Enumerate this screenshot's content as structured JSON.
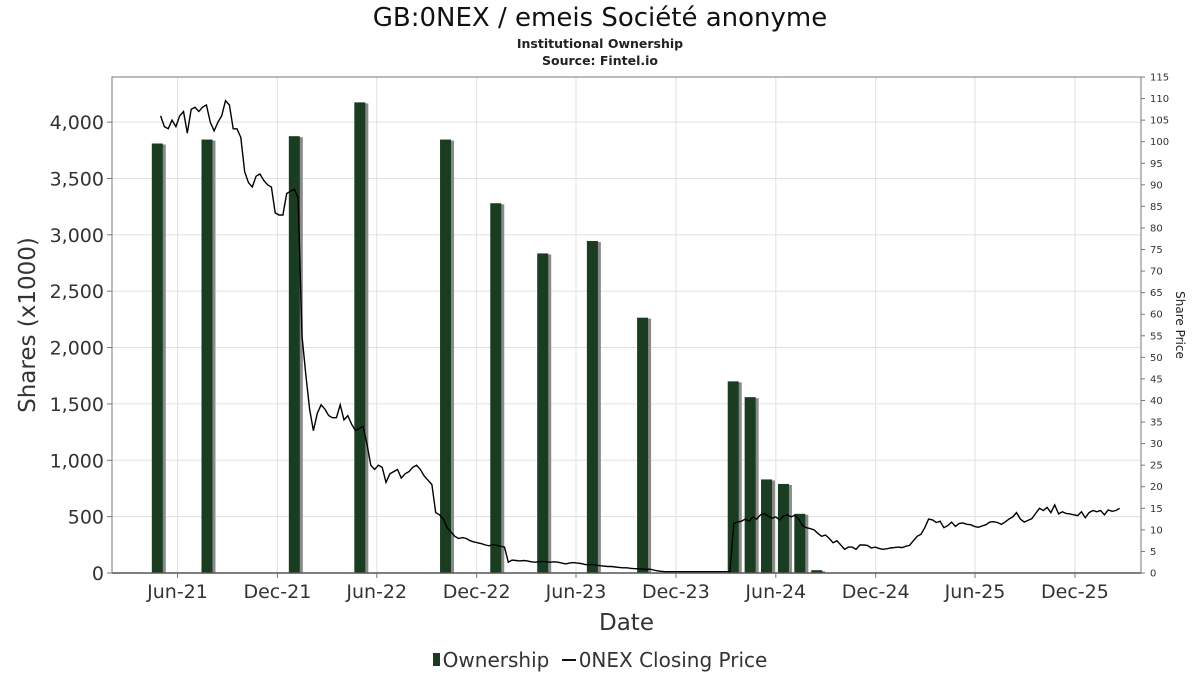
{
  "chart_data": {
    "type": "bar",
    "title": "GB:0NEX / emeis Société anonyme",
    "subtitle": "Institutional Ownership",
    "source": "Source: Fintel.io",
    "xlabel": "Date",
    "ylabel": "Shares (x1000)",
    "y2label": "Share Price",
    "x_tick_labels": [
      "Jun-21",
      "Dec-21",
      "Jun-22",
      "Dec-22",
      "Jun-23",
      "Dec-23",
      "Jun-24",
      "Dec-24",
      "Jun-25",
      "Dec-25"
    ],
    "x_tick_dates": [
      "2021-06-01",
      "2021-12-01",
      "2022-06-01",
      "2022-12-01",
      "2023-06-01",
      "2023-12-01",
      "2024-06-01",
      "2024-12-01",
      "2025-06-01",
      "2025-12-01"
    ],
    "xlim": [
      "2021-02-01",
      "2026-04-01"
    ],
    "ylim": [
      0,
      4400
    ],
    "y_ticks": [
      0,
      500,
      1000,
      1500,
      2000,
      2500,
      3000,
      3500,
      4000
    ],
    "y_tick_labels": [
      "0",
      "500",
      "1,000",
      "1,500",
      "2,000",
      "2,500",
      "3,000",
      "3,500",
      "4,000"
    ],
    "y2lim": [
      0,
      115
    ],
    "y2_ticks": [
      0,
      5,
      10,
      15,
      20,
      25,
      30,
      35,
      40,
      45,
      50,
      55,
      60,
      65,
      70,
      75,
      80,
      85,
      90,
      95,
      100,
      105,
      110,
      115
    ],
    "grid": true,
    "legend_position": "bottom-center",
    "colors": {
      "bar": "#1a3d22",
      "bar_shadow": "#8a8a8a",
      "line": "#000000",
      "grid": "#e0e0e0"
    },
    "series": [
      {
        "name": "Ownership",
        "type": "bar",
        "points": [
          [
            "2021-04-25",
            3810
          ],
          [
            "2021-07-25",
            3845
          ],
          [
            "2022-01-01",
            3875
          ],
          [
            "2022-05-01",
            4175
          ],
          [
            "2022-10-05",
            3845
          ],
          [
            "2023-01-05",
            3280
          ],
          [
            "2023-04-01",
            2835
          ],
          [
            "2023-07-01",
            2945
          ],
          [
            "2023-10-01",
            2265
          ],
          [
            "2024-03-15",
            1700
          ],
          [
            "2024-04-15",
            1560
          ],
          [
            "2024-05-15",
            830
          ],
          [
            "2024-06-15",
            790
          ],
          [
            "2024-07-15",
            525
          ],
          [
            "2024-08-15",
            25
          ]
        ]
      },
      {
        "name": "0NEX Closing Price",
        "type": "line",
        "axis": "right",
        "points": [
          [
            "2021-05-01",
            106
          ],
          [
            "2021-05-08",
            103.5
          ],
          [
            "2021-05-15",
            103
          ],
          [
            "2021-05-22",
            105
          ],
          [
            "2021-05-29",
            103.5
          ],
          [
            "2021-06-05",
            106
          ],
          [
            "2021-06-12",
            107
          ],
          [
            "2021-06-19",
            102
          ],
          [
            "2021-06-26",
            107.5
          ],
          [
            "2021-07-03",
            108
          ],
          [
            "2021-07-10",
            107
          ],
          [
            "2021-07-17",
            108
          ],
          [
            "2021-07-24",
            108.5
          ],
          [
            "2021-07-31",
            104.5
          ],
          [
            "2021-08-07",
            102.5
          ],
          [
            "2021-08-14",
            104.5
          ],
          [
            "2021-08-21",
            106
          ],
          [
            "2021-08-28",
            109.5
          ],
          [
            "2021-09-04",
            108.5
          ],
          [
            "2021-09-11",
            103
          ],
          [
            "2021-09-18",
            103
          ],
          [
            "2021-09-25",
            101
          ],
          [
            "2021-10-02",
            93
          ],
          [
            "2021-10-09",
            90.5
          ],
          [
            "2021-10-16",
            89.5
          ],
          [
            "2021-10-23",
            92
          ],
          [
            "2021-10-30",
            92.5
          ],
          [
            "2021-11-06",
            91
          ],
          [
            "2021-11-13",
            90
          ],
          [
            "2021-11-20",
            89.5
          ],
          [
            "2021-11-27",
            83.5
          ],
          [
            "2021-12-04",
            83
          ],
          [
            "2021-12-11",
            83
          ],
          [
            "2021-12-18",
            88
          ],
          [
            "2021-12-25",
            88.5
          ],
          [
            "2022-01-01",
            89
          ],
          [
            "2022-01-08",
            87
          ],
          [
            "2022-01-15",
            55
          ],
          [
            "2022-01-22",
            46
          ],
          [
            "2022-01-29",
            38
          ],
          [
            "2022-02-05",
            33
          ],
          [
            "2022-02-12",
            37
          ],
          [
            "2022-02-19",
            39
          ],
          [
            "2022-02-26",
            38
          ],
          [
            "2022-03-05",
            36.5
          ],
          [
            "2022-03-12",
            36
          ],
          [
            "2022-03-19",
            36
          ],
          [
            "2022-03-26",
            39
          ],
          [
            "2022-04-02",
            35.5
          ],
          [
            "2022-04-09",
            36.5
          ],
          [
            "2022-04-16",
            34.5
          ],
          [
            "2022-04-23",
            33
          ],
          [
            "2022-04-30",
            33.5
          ],
          [
            "2022-05-07",
            34
          ],
          [
            "2022-05-14",
            30
          ],
          [
            "2022-05-21",
            25
          ],
          [
            "2022-05-28",
            24
          ],
          [
            "2022-06-04",
            25
          ],
          [
            "2022-06-11",
            24.5
          ],
          [
            "2022-06-18",
            21
          ],
          [
            "2022-06-25",
            23
          ],
          [
            "2022-07-02",
            23.5
          ],
          [
            "2022-07-09",
            24
          ],
          [
            "2022-07-16",
            22
          ],
          [
            "2022-07-23",
            23
          ],
          [
            "2022-07-30",
            23.5
          ],
          [
            "2022-08-06",
            24.5
          ],
          [
            "2022-08-13",
            25
          ],
          [
            "2022-08-20",
            24
          ],
          [
            "2022-08-27",
            22.5
          ],
          [
            "2022-09-03",
            21.5
          ],
          [
            "2022-09-10",
            20.5
          ],
          [
            "2022-09-17",
            14
          ],
          [
            "2022-09-24",
            13.5
          ],
          [
            "2022-10-01",
            12.5
          ],
          [
            "2022-10-08",
            10.5
          ],
          [
            "2022-10-15",
            9.5
          ],
          [
            "2022-10-22",
            8.5
          ],
          [
            "2022-10-29",
            8
          ],
          [
            "2022-11-05",
            8.2
          ],
          [
            "2022-11-12",
            8
          ],
          [
            "2022-11-19",
            7.5
          ],
          [
            "2022-11-26",
            7.2
          ],
          [
            "2022-12-03",
            7
          ],
          [
            "2022-12-10",
            6.8
          ],
          [
            "2022-12-17",
            6.5
          ],
          [
            "2022-12-24",
            6.3
          ],
          [
            "2022-12-31",
            6.6
          ],
          [
            "2023-01-07",
            6.4
          ],
          [
            "2023-01-14",
            6.2
          ],
          [
            "2023-01-21",
            6
          ],
          [
            "2023-01-28",
            2.5
          ],
          [
            "2023-02-04",
            3
          ],
          [
            "2023-02-11",
            2.9
          ],
          [
            "2023-02-18",
            2.8
          ],
          [
            "2023-02-25",
            2.9
          ],
          [
            "2023-03-04",
            2.8
          ],
          [
            "2023-03-11",
            2.6
          ],
          [
            "2023-03-18",
            2.5
          ],
          [
            "2023-03-25",
            2.6
          ],
          [
            "2023-04-01",
            2.7
          ],
          [
            "2023-04-08",
            2.6
          ],
          [
            "2023-04-15",
            2.5
          ],
          [
            "2023-04-22",
            2.6
          ],
          [
            "2023-04-29",
            2.5
          ],
          [
            "2023-05-06",
            2.3
          ],
          [
            "2023-05-13",
            2.1
          ],
          [
            "2023-05-20",
            2.3
          ],
          [
            "2023-05-27",
            2.4
          ],
          [
            "2023-06-03",
            2.3
          ],
          [
            "2023-06-10",
            2.2
          ],
          [
            "2023-06-17",
            2
          ],
          [
            "2023-06-24",
            1.9
          ],
          [
            "2023-07-01",
            2
          ],
          [
            "2023-07-08",
            1.8
          ],
          [
            "2023-07-15",
            1.7
          ],
          [
            "2023-07-22",
            1.6
          ],
          [
            "2023-07-29",
            1.5
          ],
          [
            "2023-08-05",
            1.5
          ],
          [
            "2023-08-12",
            1.4
          ],
          [
            "2023-08-19",
            1.3
          ],
          [
            "2023-08-26",
            1.2
          ],
          [
            "2023-09-02",
            1.2
          ],
          [
            "2023-09-09",
            1.1
          ],
          [
            "2023-09-16",
            1
          ],
          [
            "2023-09-23",
            1
          ],
          [
            "2023-09-30",
            0.9
          ],
          [
            "2023-10-07",
            0.8
          ],
          [
            "2023-10-14",
            0.9
          ],
          [
            "2023-10-21",
            0.7
          ],
          [
            "2023-10-28",
            0.5
          ],
          [
            "2023-11-04",
            0.4
          ],
          [
            "2023-11-11",
            0.3
          ],
          [
            "2023-11-18",
            0.3
          ],
          [
            "2023-11-25",
            0.3
          ],
          [
            "2023-12-02",
            0.3
          ],
          [
            "2023-12-09",
            0.3
          ],
          [
            "2023-12-16",
            0.3
          ],
          [
            "2023-12-23",
            0.3
          ],
          [
            "2023-12-30",
            0.3
          ],
          [
            "2024-01-06",
            0.3
          ],
          [
            "2024-01-13",
            0.3
          ],
          [
            "2024-01-20",
            0.3
          ],
          [
            "2024-01-27",
            0.3
          ],
          [
            "2024-02-03",
            0.3
          ],
          [
            "2024-02-10",
            0.3
          ],
          [
            "2024-02-17",
            0.3
          ],
          [
            "2024-02-24",
            0.3
          ],
          [
            "2024-03-02",
            0.3
          ],
          [
            "2024-03-09",
            0.3
          ],
          [
            "2024-03-16",
            11.5
          ],
          [
            "2024-03-23",
            11.8
          ],
          [
            "2024-03-30",
            12
          ],
          [
            "2024-04-06",
            12.5
          ],
          [
            "2024-04-13",
            12
          ],
          [
            "2024-04-20",
            13
          ],
          [
            "2024-04-27",
            12.5
          ],
          [
            "2024-05-04",
            13.5
          ],
          [
            "2024-05-11",
            13.8
          ],
          [
            "2024-05-18",
            13.2
          ],
          [
            "2024-05-25",
            12.7
          ],
          [
            "2024-06-01",
            13
          ],
          [
            "2024-06-08",
            12.3
          ],
          [
            "2024-06-15",
            13.2
          ],
          [
            "2024-06-22",
            13.5
          ],
          [
            "2024-06-29",
            13
          ],
          [
            "2024-07-06",
            13.4
          ],
          [
            "2024-07-13",
            12.5
          ],
          [
            "2024-07-20",
            11
          ],
          [
            "2024-07-27",
            10.5
          ],
          [
            "2024-08-03",
            10.3
          ],
          [
            "2024-08-10",
            10
          ],
          [
            "2024-08-17",
            9.2
          ],
          [
            "2024-08-24",
            8.5
          ],
          [
            "2024-08-31",
            8.8
          ],
          [
            "2024-09-07",
            8
          ],
          [
            "2024-09-14",
            7
          ],
          [
            "2024-09-21",
            7.5
          ],
          [
            "2024-09-28",
            6.5
          ],
          [
            "2024-10-05",
            5.5
          ],
          [
            "2024-10-12",
            6
          ],
          [
            "2024-10-19",
            6
          ],
          [
            "2024-10-26",
            5.5
          ],
          [
            "2024-11-02",
            6.5
          ],
          [
            "2024-11-09",
            6.5
          ],
          [
            "2024-11-16",
            6.4
          ],
          [
            "2024-11-23",
            5.8
          ],
          [
            "2024-11-30",
            6
          ],
          [
            "2024-12-07",
            5.7
          ],
          [
            "2024-12-14",
            5.5
          ],
          [
            "2024-12-21",
            5.6
          ],
          [
            "2024-12-28",
            5.8
          ],
          [
            "2025-01-04",
            5.9
          ],
          [
            "2025-01-11",
            6
          ],
          [
            "2025-01-18",
            5.9
          ],
          [
            "2025-01-25",
            6.2
          ],
          [
            "2025-02-01",
            6.4
          ],
          [
            "2025-02-08",
            7.5
          ],
          [
            "2025-02-15",
            8.5
          ],
          [
            "2025-02-22",
            9
          ],
          [
            "2025-03-01",
            10.5
          ],
          [
            "2025-03-08",
            12.5
          ],
          [
            "2025-03-15",
            12.3
          ],
          [
            "2025-03-22",
            11.7
          ],
          [
            "2025-03-29",
            12
          ],
          [
            "2025-04-05",
            10.5
          ],
          [
            "2025-04-12",
            11
          ],
          [
            "2025-04-19",
            11.8
          ],
          [
            "2025-04-26",
            10.8
          ],
          [
            "2025-05-03",
            11.5
          ],
          [
            "2025-05-10",
            11.6
          ],
          [
            "2025-05-17",
            11.3
          ],
          [
            "2025-05-24",
            11.2
          ],
          [
            "2025-05-31",
            10.8
          ],
          [
            "2025-06-07",
            10.6
          ],
          [
            "2025-06-14",
            10.9
          ],
          [
            "2025-06-21",
            11.2
          ],
          [
            "2025-06-28",
            11.8
          ],
          [
            "2025-07-05",
            11.9
          ],
          [
            "2025-07-12",
            11.7
          ],
          [
            "2025-07-19",
            11.3
          ],
          [
            "2025-07-26",
            11.8
          ],
          [
            "2025-08-02",
            12.5
          ],
          [
            "2025-08-09",
            13
          ],
          [
            "2025-08-16",
            14
          ],
          [
            "2025-08-23",
            12.5
          ],
          [
            "2025-08-30",
            11.8
          ],
          [
            "2025-09-06",
            12.2
          ],
          [
            "2025-09-13",
            12.6
          ],
          [
            "2025-09-20",
            13.8
          ],
          [
            "2025-09-27",
            15
          ],
          [
            "2025-10-04",
            14.5
          ],
          [
            "2025-10-11",
            15.2
          ],
          [
            "2025-10-18",
            14
          ],
          [
            "2025-10-25",
            15.8
          ],
          [
            "2025-11-01",
            13.7
          ],
          [
            "2025-11-08",
            14.2
          ],
          [
            "2025-11-15",
            13.8
          ],
          [
            "2025-11-22",
            13.7
          ],
          [
            "2025-11-29",
            13.5
          ],
          [
            "2025-12-06",
            13.3
          ],
          [
            "2025-12-13",
            14.2
          ],
          [
            "2025-12-20",
            12.8
          ],
          [
            "2025-12-27",
            14
          ],
          [
            "2026-01-03",
            14.5
          ],
          [
            "2026-01-10",
            14.2
          ],
          [
            "2026-01-17",
            14.5
          ],
          [
            "2026-01-24",
            13.5
          ],
          [
            "2026-01-31",
            14.6
          ],
          [
            "2026-02-07",
            14.3
          ],
          [
            "2026-02-14",
            14.5
          ],
          [
            "2026-02-21",
            15
          ]
        ]
      }
    ]
  }
}
